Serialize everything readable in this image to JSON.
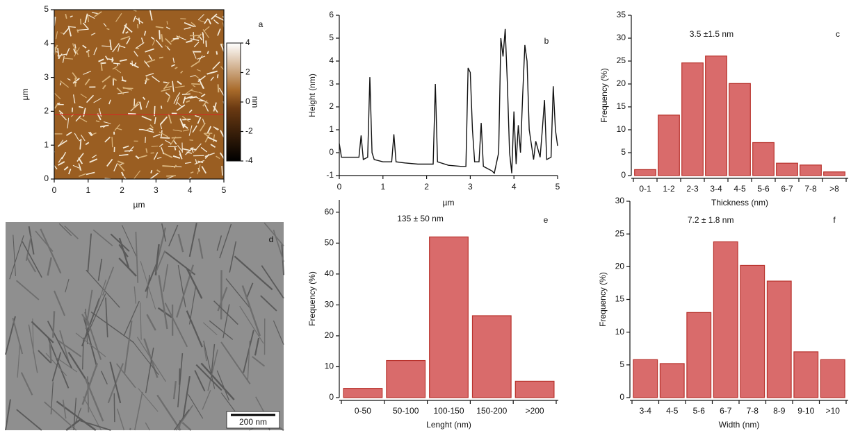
{
  "chart_data": [
    {
      "type": "image",
      "panel": "a",
      "xlim": [
        0,
        5
      ],
      "xticks": [
        0,
        1,
        2,
        3,
        4,
        5
      ],
      "ylim": [
        0,
        5
      ],
      "yticks": [
        0,
        1,
        2,
        3,
        4,
        5
      ],
      "xlabel": "µm",
      "ylabel": "µm",
      "colorbar": {
        "lim": [
          -4,
          4
        ],
        "ticks": [
          -4,
          -2,
          0,
          2,
          4
        ],
        "label": "nm"
      }
    },
    {
      "type": "line",
      "panel": "b",
      "xlabel": "µm",
      "ylabel": "Height (nm)",
      "color": "#111111",
      "x": [
        0,
        0.05,
        0.45,
        0.5,
        0.55,
        0.65,
        0.7,
        0.75,
        0.8,
        1.0,
        1.2,
        1.25,
        1.3,
        1.5,
        1.8,
        2.0,
        2.15,
        2.2,
        2.25,
        2.5,
        2.8,
        2.9,
        2.95,
        3.0,
        3.05,
        3.1,
        3.2,
        3.25,
        3.3,
        3.5,
        3.55,
        3.65,
        3.7,
        3.75,
        3.8,
        3.85,
        3.9,
        3.95,
        4.0,
        4.05,
        4.1,
        4.15,
        4.2,
        4.25,
        4.3,
        4.35,
        4.45,
        4.5,
        4.6,
        4.65,
        4.7,
        4.75,
        4.85,
        4.9,
        4.95,
        5.0
      ],
      "values": [
        0.4,
        -0.2,
        -0.2,
        0.75,
        -0.3,
        -0.2,
        3.3,
        0.0,
        -0.3,
        -0.4,
        -0.4,
        0.8,
        -0.4,
        -0.45,
        -0.5,
        -0.5,
        -0.5,
        3.0,
        -0.4,
        -0.55,
        -0.6,
        -0.6,
        3.7,
        3.5,
        1.0,
        -0.4,
        -0.4,
        1.3,
        -0.6,
        -0.8,
        -0.9,
        0.0,
        5.0,
        4.2,
        5.4,
        3.0,
        0.0,
        -0.9,
        1.8,
        -0.5,
        1.2,
        0.0,
        2.5,
        4.7,
        4.0,
        1.0,
        -0.3,
        0.5,
        -0.2,
        1.0,
        2.3,
        -0.3,
        -0.2,
        2.9,
        1.0,
        0.3
      ],
      "xlim": [
        0,
        5
      ],
      "xticks": [
        0,
        1,
        2,
        3,
        4,
        5
      ],
      "ylim": [
        -1,
        6
      ],
      "yticks": [
        -1,
        0,
        1,
        2,
        3,
        4,
        5,
        6
      ]
    },
    {
      "type": "bar",
      "panel": "c",
      "annotation": "3.5 ±1.5 nm",
      "xlabel": "Thickness (nm)",
      "ylabel": "Frequency (%)",
      "color": "#d96b6b",
      "edgecolor": "#b8322c",
      "categories": [
        "0-1",
        "1-2",
        "2-3",
        "3-4",
        "4-5",
        "5-6",
        "6-7",
        "7-8",
        ">8"
      ],
      "values": [
        1.3,
        13.2,
        24.6,
        26.1,
        20.1,
        7.2,
        2.7,
        2.3,
        0.8
      ],
      "ylim": [
        0,
        35
      ],
      "yticks": [
        0,
        5,
        10,
        15,
        20,
        25,
        30,
        35
      ]
    },
    {
      "type": "image",
      "panel": "d",
      "scale_bar": "200 nm"
    },
    {
      "type": "bar",
      "panel": "e",
      "annotation": "135 ± 50 nm",
      "xlabel": "Lenght (nm)",
      "ylabel": "Frequency (%)",
      "color": "#d96b6b",
      "edgecolor": "#b8322c",
      "categories": [
        "0-50",
        "50-100",
        "100-150",
        "150-200",
        ">200"
      ],
      "values": [
        3,
        12,
        52,
        26.5,
        5.3
      ],
      "ylim": [
        0,
        64
      ],
      "yticks": [
        0,
        10,
        20,
        30,
        40,
        50,
        60
      ]
    },
    {
      "type": "bar",
      "panel": "f",
      "annotation": "7.2 ± 1.8 nm",
      "xlabel": "Width (nm)",
      "ylabel": "Frequency (%)",
      "color": "#d96b6b",
      "edgecolor": "#b8322c",
      "categories": [
        "3-4",
        "4-5",
        "5-6",
        "6-7",
        "7-8",
        "8-9",
        "9-10",
        ">10"
      ],
      "values": [
        5.8,
        5.2,
        13,
        23.8,
        20.2,
        17.8,
        7,
        5.8
      ],
      "ylim": [
        0,
        30
      ],
      "yticks": [
        0,
        5,
        10,
        15,
        20,
        25,
        30
      ]
    }
  ]
}
